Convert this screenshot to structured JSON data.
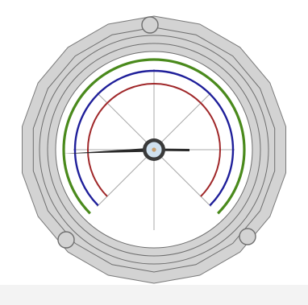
{
  "colors": {
    "background": "#ffffff",
    "housing": "#d3d3d3",
    "housing_stroke": "#7a7a7a",
    "face": "#ffffff",
    "ring_line": "#6e6e6e",
    "outer_arc": "#4a8a1c",
    "middle_arc": "#1f1f9a",
    "inner_arc": "#a0282a",
    "spoke": "#a8a8a8",
    "needle": "#2a2a2a",
    "hub_fill": "#cfe0ee",
    "hub_stroke": "#3a3a3a",
    "hub_center": "#c8a070",
    "bottom_band": "#f3f3f3"
  },
  "dial": {
    "arc_sweep_degrees": 270,
    "spoke_count": 8,
    "mounting_holes": 3
  }
}
